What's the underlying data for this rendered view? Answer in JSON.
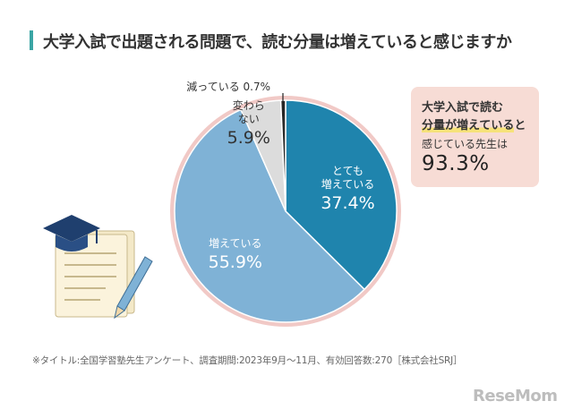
{
  "title": "大学入試で出題される問題で、読む分量は増えていると感じますか",
  "chart_data": {
    "type": "pie",
    "start": "12 o'clock, clockwise",
    "slices": [
      {
        "label_lines": [
          "とても",
          "増えている"
        ],
        "value": 37.4,
        "value_text": "37.4%",
        "color": "#1f84ad",
        "text_color": "#ffffff"
      },
      {
        "label_lines": [
          "増えている"
        ],
        "value": 55.9,
        "value_text": "55.9%",
        "color": "#7fb2d6",
        "text_color": "#ffffff"
      },
      {
        "label_lines": [
          "変わら",
          "ない"
        ],
        "value": 5.9,
        "value_text": "5.9%",
        "color": "#dcdcdc",
        "text_color": "#333333"
      },
      {
        "label_lines": [
          "減っている 0.7%"
        ],
        "value": 0.7,
        "value_text": "",
        "color": "#2a2a2a",
        "text_color": "#333333"
      }
    ],
    "border_color": "#f1c9c6"
  },
  "callout": {
    "line1": "大学入試で読む",
    "line2_highlight": "分量が増えている",
    "line2_rest": "と",
    "line3": "感じている先生は",
    "value": "93.3%"
  },
  "footnote": "※タイトル:全国学習塾先生アンケート、調査期間:2023年9月〜11月、有効回答数:270［株式会社SRJ］",
  "logo": "ReseMom"
}
